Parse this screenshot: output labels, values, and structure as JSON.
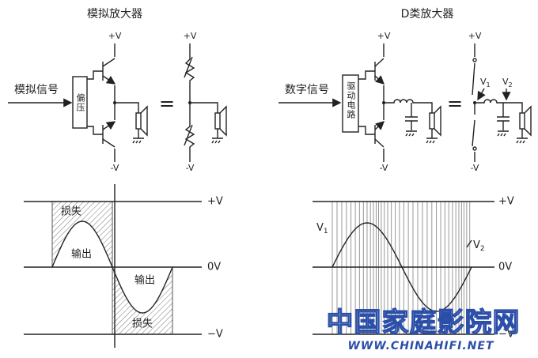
{
  "analog": {
    "title": "模拟放大器",
    "supply_pos": [
      "+V",
      "+V"
    ],
    "supply_neg": [
      "-V",
      "-V"
    ],
    "input_label": "模拟信号",
    "bias_label": "偏压",
    "equals": "="
  },
  "class_d": {
    "title": "D类放大器",
    "supply_pos": [
      "+V",
      "+V"
    ],
    "supply_neg": [
      "-V",
      "-V"
    ],
    "input_label": "数字信号",
    "driver_label": "驱动电路",
    "equals": "=",
    "v1": {
      "main": "V",
      "sub": "1"
    },
    "v2": {
      "main": "V",
      "sub": "2"
    }
  },
  "analog_wave": {
    "levels": [
      "+V",
      "0V",
      "−V"
    ],
    "loss_labels": [
      "损失",
      "损失"
    ],
    "output_labels": [
      "输出",
      "输出"
    ]
  },
  "class_d_wave": {
    "levels": [
      "+V",
      "0V",
      "−V"
    ],
    "v1": {
      "main": "V",
      "sub": "1"
    },
    "v2": {
      "main": "V",
      "sub": "2"
    }
  },
  "watermark": {
    "name": "中国家庭影院网",
    "url": "WWW.CHINAHIFI.NET"
  }
}
